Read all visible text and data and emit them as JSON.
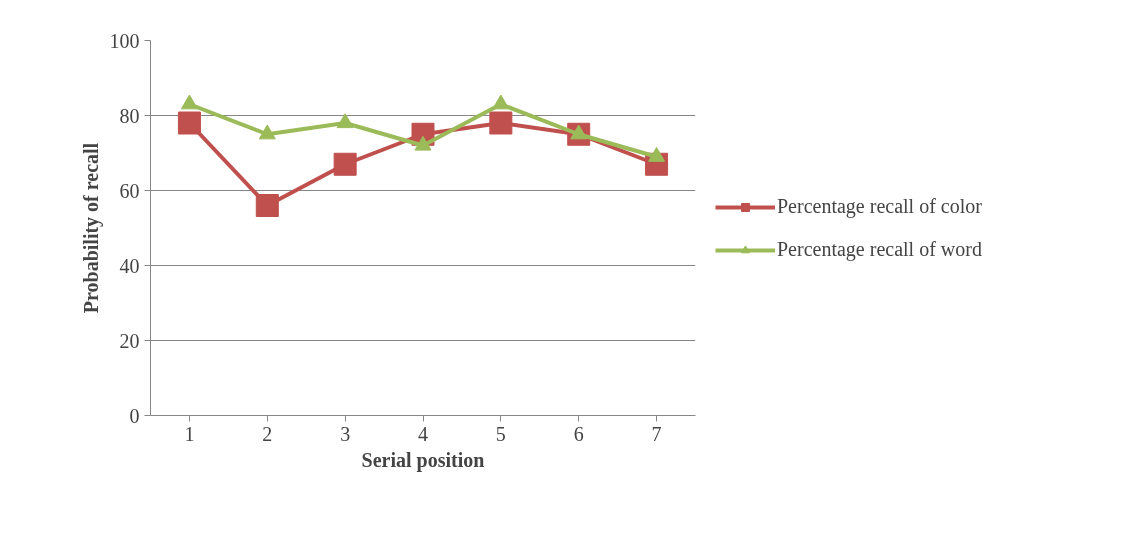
{
  "chart_data": {
    "type": "line",
    "xlabel": "Serial position",
    "ylabel": "Probability of recall",
    "categories": [
      "1",
      "2",
      "3",
      "4",
      "5",
      "6",
      "7"
    ],
    "series": [
      {
        "name": "Percentage recall of color",
        "color": "#c0504d",
        "marker": "square",
        "values": [
          78,
          56,
          67,
          75,
          78,
          75,
          67
        ]
      },
      {
        "name": "Percentage recall of word",
        "color": "#9bbb59",
        "marker": "triangle",
        "values": [
          83,
          75,
          78,
          72,
          83,
          75,
          69
        ]
      }
    ],
    "ylim": [
      0,
      100
    ],
    "yticks": [
      0,
      20,
      40,
      60,
      80,
      100
    ],
    "grid": "y",
    "legend": "right"
  }
}
